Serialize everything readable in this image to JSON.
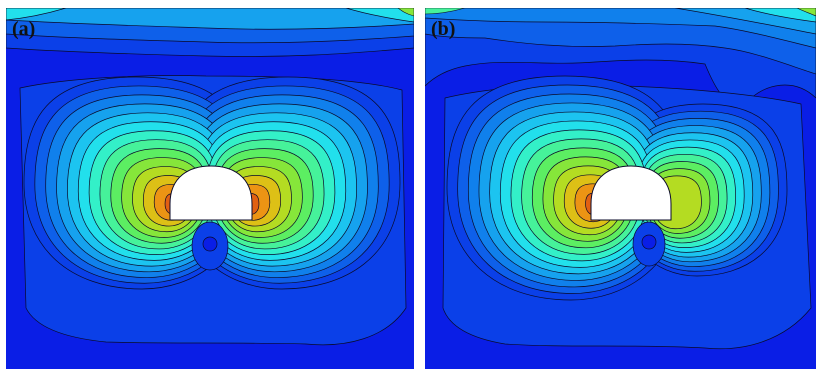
{
  "panels": [
    {
      "label": "(a)"
    },
    {
      "label": "(b)"
    }
  ],
  "colors": {
    "background_level": "#0a1ee6",
    "contour_levels": [
      "#0a1ee6",
      "#0b40e8",
      "#0e60ea",
      "#1080ec",
      "#16a2ee",
      "#1cc4f0",
      "#22e0ec",
      "#33f0c8",
      "#46f29a",
      "#5cee62",
      "#86e63a",
      "#b4dc22",
      "#ddc016",
      "#ec9414",
      "#e26012"
    ],
    "contour_line": "#0a0a2a",
    "tunnel_fill": "#ffffff"
  }
}
